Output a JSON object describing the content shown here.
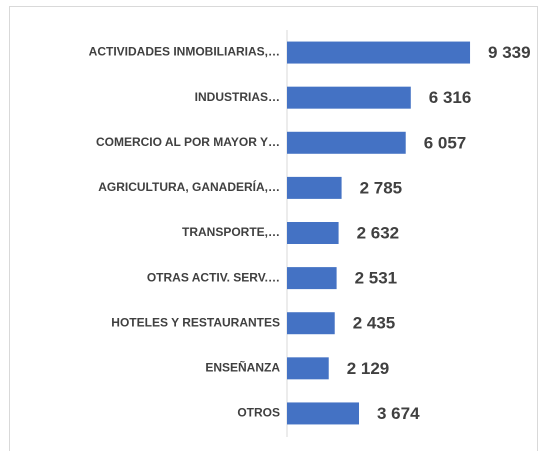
{
  "chart_data": {
    "type": "bar",
    "orientation": "horizontal",
    "categories": [
      "ACTIVIDADES INMOBILIARIAS,…",
      "INDUSTRIAS…",
      "COMERCIO AL POR MAYOR Y…",
      "AGRICULTURA, GANADERÍA,…",
      "TRANSPORTE,…",
      "OTRAS ACTIV. SERV.…",
      "HOTELES Y RESTAURANTES",
      "ENSEÑANZA",
      "OTROS"
    ],
    "values": [
      9339,
      6316,
      6057,
      2785,
      2632,
      2531,
      2435,
      2129,
      3674
    ],
    "value_labels": [
      "9 339",
      "6 316",
      "6 057",
      "2 785",
      "2 632",
      "2 531",
      "2 435",
      "2 129",
      "3 674"
    ],
    "color": "#4472c4",
    "xlim": [
      0,
      10000
    ]
  }
}
